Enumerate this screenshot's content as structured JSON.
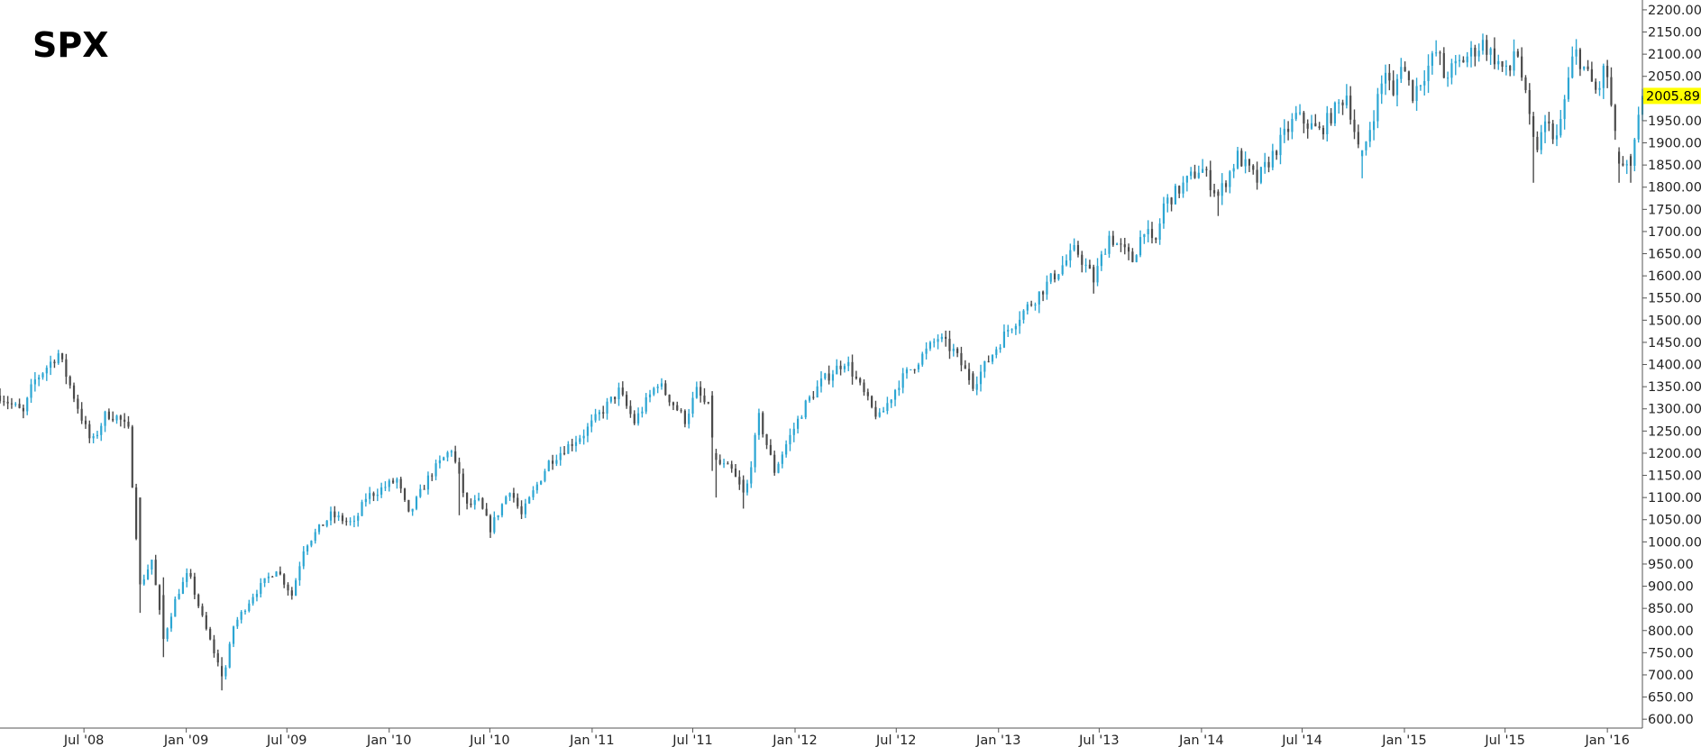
{
  "chart_data": {
    "type": "candlestick",
    "title": "SPX",
    "interval": "weekly",
    "up_color": "#2ca6d3",
    "down_color": "#4a4a4a",
    "last_price_highlight": "#ffff00",
    "last_price": "2005.89",
    "grid": false,
    "y_axis_position": "right",
    "ylim": [
      580,
      2210
    ],
    "y_ticks": [
      "600.00",
      "650.00",
      "700.00",
      "750.00",
      "800.00",
      "850.00",
      "900.00",
      "950.00",
      "1000.00",
      "1050.00",
      "1100.00",
      "1150.00",
      "1200.00",
      "1250.00",
      "1300.00",
      "1350.00",
      "1400.00",
      "1450.00",
      "1500.00",
      "1550.00",
      "1600.00",
      "1650.00",
      "1700.00",
      "1750.00",
      "1800.00",
      "1850.00",
      "1900.00",
      "1950.00",
      "2000.00",
      "2050.00",
      "2100.00",
      "2150.00",
      "2200.00"
    ],
    "x_range": [
      "2008-02-01",
      "2016-03-04"
    ],
    "x_ticks": [
      {
        "label": "Jul '08",
        "date": "2008-07-01"
      },
      {
        "label": "Jan '09",
        "date": "2009-01-01"
      },
      {
        "label": "Jul '09",
        "date": "2009-07-01"
      },
      {
        "label": "Jan '10",
        "date": "2010-01-01"
      },
      {
        "label": "Jul '10",
        "date": "2010-07-01"
      },
      {
        "label": "Jan '11",
        "date": "2011-01-01"
      },
      {
        "label": "Jul '11",
        "date": "2011-07-01"
      },
      {
        "label": "Jan '12",
        "date": "2012-01-01"
      },
      {
        "label": "Jul '12",
        "date": "2012-07-01"
      },
      {
        "label": "Jan '13",
        "date": "2013-01-01"
      },
      {
        "label": "Jul '13",
        "date": "2013-07-01"
      },
      {
        "label": "Jan '14",
        "date": "2014-01-01"
      },
      {
        "label": "Jul '14",
        "date": "2014-07-01"
      },
      {
        "label": "Jan '15",
        "date": "2015-01-01"
      },
      {
        "label": "Jul '15",
        "date": "2015-07-01"
      },
      {
        "label": "Jan '16",
        "date": "2016-01-01"
      }
    ],
    "anchors": [
      [
        "2008-02-01",
        1330
      ],
      [
        "2008-03-14",
        1290
      ],
      [
        "2008-04-01",
        1360
      ],
      [
        "2008-05-16",
        1425
      ],
      [
        "2008-06-27",
        1280
      ],
      [
        "2008-07-15",
        1220
      ],
      [
        "2008-08-10",
        1290
      ],
      [
        "2008-09-01",
        1280
      ],
      [
        "2008-09-19",
        1250
      ],
      [
        "2008-10-10",
        900
      ],
      [
        "2008-10-31",
        960
      ],
      [
        "2008-11-21",
        780
      ],
      [
        "2008-12-15",
        880
      ],
      [
        "2009-01-05",
        930
      ],
      [
        "2009-02-01",
        820
      ],
      [
        "2009-03-09",
        690
      ],
      [
        "2009-03-27",
        810
      ],
      [
        "2009-05-01",
        880
      ],
      [
        "2009-06-12",
        940
      ],
      [
        "2009-07-10",
        880
      ],
      [
        "2009-08-01",
        990
      ],
      [
        "2009-09-18",
        1060
      ],
      [
        "2009-10-30",
        1040
      ],
      [
        "2009-11-20",
        1100
      ],
      [
        "2010-01-15",
        1140
      ],
      [
        "2010-02-05",
        1060
      ],
      [
        "2010-03-15",
        1150
      ],
      [
        "2010-04-23",
        1210
      ],
      [
        "2010-05-21",
        1080
      ],
      [
        "2010-06-11",
        1090
      ],
      [
        "2010-07-02",
        1030
      ],
      [
        "2010-08-06",
        1120
      ],
      [
        "2010-08-27",
        1060
      ],
      [
        "2010-10-15",
        1180
      ],
      [
        "2010-11-12",
        1210
      ],
      [
        "2010-12-17",
        1245
      ],
      [
        "2011-02-18",
        1340
      ],
      [
        "2011-03-18",
        1270
      ],
      [
        "2011-04-29",
        1360
      ],
      [
        "2011-06-17",
        1275
      ],
      [
        "2011-07-08",
        1340
      ],
      [
        "2011-07-29",
        1300
      ],
      [
        "2011-08-12",
        1180
      ],
      [
        "2011-09-09",
        1160
      ],
      [
        "2011-10-03",
        1100
      ],
      [
        "2011-10-28",
        1280
      ],
      [
        "2011-11-25",
        1160
      ],
      [
        "2011-12-16",
        1220
      ],
      [
        "2012-01-20",
        1310
      ],
      [
        "2012-02-17",
        1360
      ],
      [
        "2012-04-01",
        1410
      ],
      [
        "2012-05-18",
        1300
      ],
      [
        "2012-06-01",
        1280
      ],
      [
        "2012-07-06",
        1360
      ],
      [
        "2012-09-14",
        1460
      ],
      [
        "2012-10-12",
        1430
      ],
      [
        "2012-11-16",
        1355
      ],
      [
        "2012-12-14",
        1410
      ],
      [
        "2013-01-18",
        1480
      ],
      [
        "2013-03-15",
        1560
      ],
      [
        "2013-05-20",
        1660
      ],
      [
        "2013-06-21",
        1590
      ],
      [
        "2013-07-19",
        1690
      ],
      [
        "2013-08-30",
        1635
      ],
      [
        "2013-09-20",
        1710
      ],
      [
        "2013-10-08",
        1660
      ],
      [
        "2013-10-25",
        1760
      ],
      [
        "2013-12-31",
        1845
      ],
      [
        "2014-01-31",
        1780
      ],
      [
        "2014-03-07",
        1870
      ],
      [
        "2014-04-11",
        1815
      ],
      [
        "2014-06-20",
        1960
      ],
      [
        "2014-08-01",
        1925
      ],
      [
        "2014-09-19",
        2010
      ],
      [
        "2014-10-15",
        1860
      ],
      [
        "2014-11-28",
        2065
      ],
      [
        "2014-12-12",
        2000
      ],
      [
        "2014-12-26",
        2085
      ],
      [
        "2015-01-16",
        2010
      ],
      [
        "2015-03-02",
        2110
      ],
      [
        "2015-03-13",
        2050
      ],
      [
        "2015-05-22",
        2125
      ],
      [
        "2015-07-08",
        2050
      ],
      [
        "2015-07-20",
        2128
      ],
      [
        "2015-08-24",
        1880
      ],
      [
        "2015-09-18",
        1960
      ],
      [
        "2015-09-28",
        1880
      ],
      [
        "2015-11-03",
        2110
      ],
      [
        "2015-12-14",
        2010
      ],
      [
        "2015-12-29",
        2080
      ],
      [
        "2016-01-20",
        1860
      ],
      [
        "2016-02-11",
        1830
      ],
      [
        "2016-03-04",
        2005.89
      ]
    ],
    "events": [
      [
        "2008-10-10",
        1100,
        1100,
        840
      ],
      [
        "2008-11-21",
        880,
        920,
        740
      ],
      [
        "2009-03-06",
        720,
        740,
        665
      ],
      [
        "2010-05-07",
        1180,
        1190,
        1060
      ],
      [
        "2011-08-05",
        1330,
        1340,
        1160
      ],
      [
        "2011-08-12",
        1200,
        1210,
        1100
      ],
      [
        "2011-10-03",
        1140,
        1150,
        1075
      ],
      [
        "2012-11-16",
        1380,
        1385,
        1340
      ],
      [
        "2013-06-21",
        1620,
        1625,
        1560
      ],
      [
        "2014-02-03",
        1790,
        1795,
        1735
      ],
      [
        "2014-10-17",
        1870,
        1880,
        1820
      ],
      [
        "2015-08-24",
        1960,
        1970,
        1810
      ],
      [
        "2016-01-20",
        1880,
        1890,
        1810
      ],
      [
        "2016-02-11",
        1870,
        1875,
        1810
      ]
    ]
  }
}
